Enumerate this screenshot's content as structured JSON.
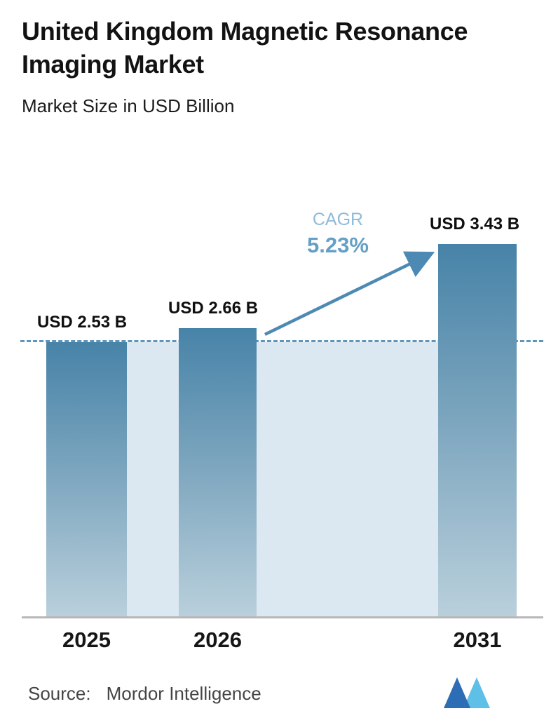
{
  "header": {
    "title": "United Kingdom Magnetic Resonance Imaging Market",
    "subtitle": "Market Size in USD Billion"
  },
  "chart_data": {
    "type": "bar",
    "title": "United Kingdom Magnetic Resonance Imaging Market",
    "subtitle": "Market Size in USD Billion",
    "unit": "USD Billion",
    "categories": [
      "2025",
      "2026",
      "2031"
    ],
    "values": [
      2.53,
      2.66,
      3.43
    ],
    "value_labels": [
      "USD 2.53 B",
      "USD 2.66 B",
      "USD 3.43 B"
    ],
    "annotation": {
      "label": "CAGR",
      "value": "5.23%"
    },
    "reference_line": {
      "value": 2.53,
      "style": "dashed"
    },
    "ylim": [
      0,
      4
    ],
    "xlabel": "",
    "ylabel": "",
    "grid": "off",
    "legend": "none",
    "colors": {
      "bar_top": "#4783a8",
      "bar_bottom": "#bad0dc",
      "band": "#dce8f1",
      "dashed_line": "#5e96bb",
      "arrow": "#4d8ab3",
      "cagr_label": "#8fbbd9",
      "cagr_value": "#64a0c6",
      "axis_line": "#b7b7b7",
      "text": "#121212"
    }
  },
  "footer": {
    "source_label": "Source:",
    "source_value": "Mordor Intelligence",
    "logo": "mordor-intelligence-logo",
    "logo_colors": {
      "dark": "#2d6db6",
      "light": "#5ec0e6"
    }
  }
}
